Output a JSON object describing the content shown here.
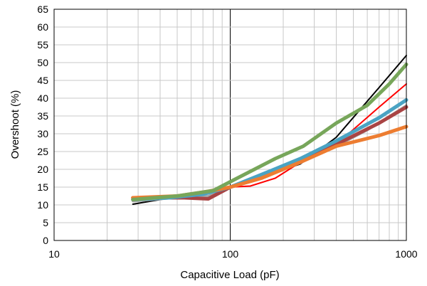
{
  "chart_data": {
    "type": "line",
    "xlabel": "Capacitive Load (pF)",
    "ylabel": "Overshoot (%)",
    "x_scale": "log",
    "xlim": [
      10,
      1000
    ],
    "ylim": [
      0,
      65
    ],
    "x_ticks": [
      "10",
      "100",
      "1000"
    ],
    "y_ticks": [
      "0",
      "5",
      "10",
      "15",
      "20",
      "25",
      "30",
      "35",
      "40",
      "45",
      "50",
      "55",
      "60",
      "65"
    ],
    "grid": true,
    "legend": "none",
    "series": [
      {
        "color": "#000000",
        "width": 2,
        "points": [
          [
            28,
            10.2
          ],
          [
            40,
            11.5
          ],
          [
            55,
            12.5
          ],
          [
            75,
            13.5
          ],
          [
            100,
            15.0
          ],
          [
            150,
            18.0
          ],
          [
            250,
            21.5
          ],
          [
            400,
            29.0
          ],
          [
            700,
            43.0
          ],
          [
            1000,
            52.0
          ]
        ]
      },
      {
        "color": "#ff0000",
        "width": 2,
        "points": [
          [
            28,
            11.0
          ],
          [
            45,
            12.0
          ],
          [
            75,
            13.5
          ],
          [
            100,
            15.0
          ],
          [
            130,
            15.3
          ],
          [
            180,
            17.5
          ],
          [
            260,
            22.5
          ],
          [
            400,
            27.0
          ],
          [
            700,
            37.5
          ],
          [
            1000,
            44.0
          ]
        ]
      },
      {
        "color": "#a5a5a5",
        "width": 3,
        "points": [
          [
            28,
            11.0
          ],
          [
            50,
            12.0
          ],
          [
            75,
            12.5
          ],
          [
            100,
            15.0
          ],
          [
            150,
            18.0
          ],
          [
            250,
            22.0
          ],
          [
            400,
            26.5
          ],
          [
            600,
            31.0
          ],
          [
            1000,
            38.0
          ]
        ]
      },
      {
        "color": "#a94444",
        "width": 5,
        "points": [
          [
            28,
            12.0
          ],
          [
            40,
            12.0
          ],
          [
            55,
            12.0
          ],
          [
            75,
            11.7
          ],
          [
            100,
            15.0
          ],
          [
            150,
            18.0
          ],
          [
            250,
            22.0
          ],
          [
            400,
            27.0
          ],
          [
            700,
            33.0
          ],
          [
            1000,
            37.5
          ]
        ]
      },
      {
        "color": "#4aa3c3",
        "width": 5,
        "points": [
          [
            28,
            11.5
          ],
          [
            45,
            12.0
          ],
          [
            70,
            13.0
          ],
          [
            100,
            15.0
          ],
          [
            150,
            18.5
          ],
          [
            250,
            23.0
          ],
          [
            400,
            28.0
          ],
          [
            700,
            34.5
          ],
          [
            1000,
            39.5
          ]
        ]
      },
      {
        "color": "#ed7d31",
        "width": 5,
        "points": [
          [
            28,
            12.0
          ],
          [
            50,
            12.5
          ],
          [
            75,
            13.8
          ],
          [
            100,
            15.0
          ],
          [
            150,
            17.5
          ],
          [
            250,
            22.0
          ],
          [
            400,
            26.5
          ],
          [
            700,
            29.5
          ],
          [
            1000,
            32.0
          ]
        ]
      },
      {
        "color": "#77a65a",
        "width": 5,
        "points": [
          [
            28,
            11.5
          ],
          [
            50,
            12.5
          ],
          [
            80,
            14.0
          ],
          [
            100,
            16.5
          ],
          [
            180,
            23.0
          ],
          [
            260,
            26.5
          ],
          [
            400,
            33.0
          ],
          [
            600,
            38.0
          ],
          [
            800,
            44.0
          ],
          [
            1000,
            49.5
          ]
        ]
      }
    ]
  }
}
